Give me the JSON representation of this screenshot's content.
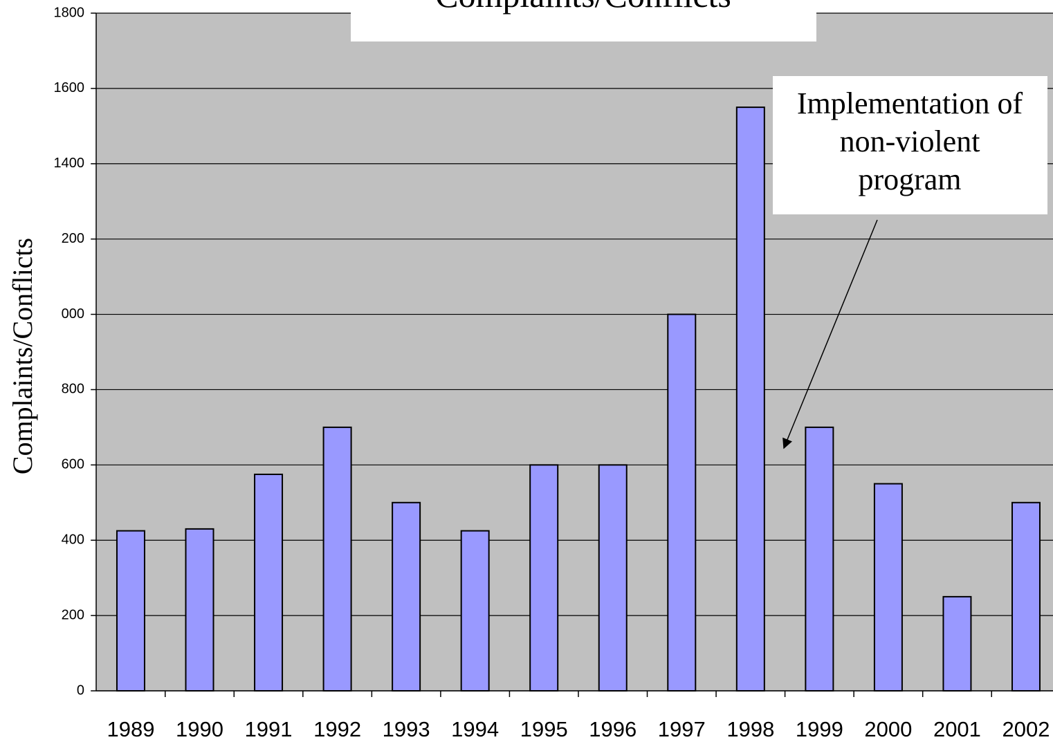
{
  "chart_data": {
    "type": "bar",
    "title": "Complaints/Conflicts",
    "y_axis_label": "Complaints/Conflicts",
    "annotation": [
      "Implementation of",
      "non-violent",
      "program"
    ],
    "categories": [
      "1989",
      "1990",
      "1991",
      "1992",
      "1993",
      "1994",
      "1995",
      "1996",
      "1997",
      "1998",
      "1999",
      "2000",
      "2001",
      "2002"
    ],
    "values": [
      425,
      430,
      575,
      700,
      500,
      425,
      600,
      600,
      1000,
      1550,
      700,
      550,
      250,
      500
    ],
    "color": "#9999ff",
    "ylim": [
      0,
      1800
    ],
    "yticks": [
      0,
      200,
      400,
      600,
      800,
      {
        "value": 1000,
        "label": "000"
      },
      {
        "value": 1200,
        "label": "200"
      },
      1400,
      1600,
      1800
    ],
    "grid": true
  }
}
